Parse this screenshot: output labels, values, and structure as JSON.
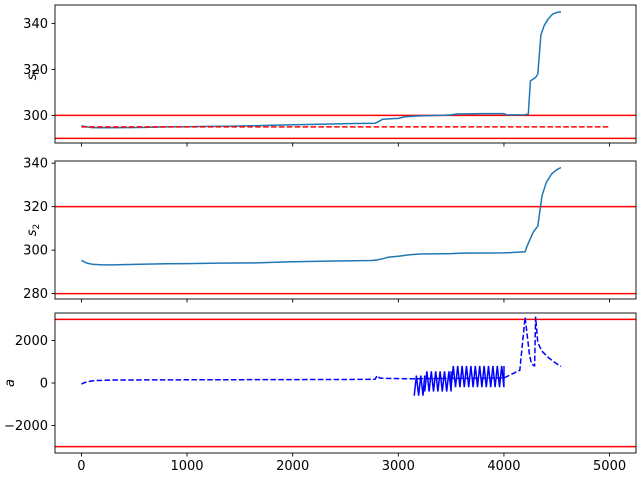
{
  "chart_data": [
    {
      "type": "line",
      "ylabel": "s",
      "ylabel_sub": "1",
      "xlim": [
        -250,
        5250
      ],
      "ylim": [
        288,
        348
      ],
      "yticks": [
        300,
        320,
        340
      ],
      "grid": false,
      "hlines": [
        {
          "y": 300,
          "color": "#ff0000",
          "style": "solid"
        },
        {
          "y": 290,
          "color": "#ff0000",
          "style": "solid"
        }
      ],
      "series": [
        {
          "color": "#1f77b4",
          "style": "solid",
          "x": [
            0,
            50,
            100,
            200,
            400,
            600,
            800,
            1000,
            1200,
            1400,
            1600,
            1800,
            2000,
            2200,
            2400,
            2600,
            2780,
            2800,
            2850,
            2950,
            3000,
            3050,
            3100,
            3200,
            3300,
            3400,
            3500,
            3550,
            3700,
            3800,
            3900,
            4000,
            4020,
            4200,
            4230,
            4250,
            4300,
            4320,
            4350,
            4380,
            4420,
            4460,
            4500,
            4540
          ],
          "y": [
            295.5,
            295.0,
            294.7,
            294.6,
            294.7,
            294.8,
            295.0,
            295.1,
            295.2,
            295.3,
            295.5,
            295.7,
            295.9,
            296.1,
            296.3,
            296.5,
            296.6,
            297.0,
            298.3,
            298.6,
            298.7,
            299.3,
            299.5,
            299.8,
            299.9,
            300.0,
            300.2,
            300.6,
            300.7,
            300.8,
            300.8,
            300.8,
            300.2,
            300.3,
            300.6,
            315.0,
            316.5,
            318.0,
            335.0,
            339.0,
            342.0,
            344.0,
            344.8,
            345.0
          ]
        },
        {
          "color": "#ff0000",
          "style": "dashed",
          "x": [
            0,
            5000
          ],
          "y": [
            295.0,
            295.0
          ]
        }
      ]
    },
    {
      "type": "line",
      "ylabel": "s",
      "ylabel_sub": "2",
      "xlim": [
        -250,
        5250
      ],
      "ylim": [
        277.5,
        341
      ],
      "yticks": [
        280,
        300,
        320,
        340
      ],
      "grid": false,
      "hlines": [
        {
          "y": 320,
          "color": "#ff0000",
          "style": "solid"
        },
        {
          "y": 280,
          "color": "#ff0000",
          "style": "solid"
        }
      ],
      "series": [
        {
          "color": "#1f77b4",
          "style": "solid",
          "x": [
            0,
            50,
            100,
            200,
            300,
            500,
            800,
            1000,
            1300,
            1650,
            2000,
            2400,
            2750,
            2800,
            2850,
            2900,
            3000,
            3100,
            3200,
            3500,
            3600,
            4000,
            4200,
            4220,
            4280,
            4320,
            4360,
            4400,
            4450,
            4500,
            4540
          ],
          "y": [
            295.3,
            294.0,
            293.5,
            293.2,
            293.2,
            293.4,
            293.7,
            293.8,
            294.0,
            294.1,
            294.6,
            295.0,
            295.2,
            295.5,
            296.0,
            296.7,
            297.2,
            297.8,
            298.2,
            298.4,
            298.6,
            298.7,
            299.2,
            302.0,
            308.5,
            311.0,
            325.0,
            331.0,
            335.0,
            337.0,
            338.0
          ]
        }
      ]
    },
    {
      "type": "line",
      "ylabel": "a",
      "xlim": [
        -250,
        5250
      ],
      "ylim": [
        -3300,
        3300
      ],
      "yticks": [
        -2000,
        0,
        2000
      ],
      "xticks": [
        0,
        1000,
        2000,
        3000,
        4000,
        5000
      ],
      "grid": false,
      "hlines": [
        {
          "y": 3000,
          "color": "#ff0000",
          "style": "solid"
        },
        {
          "y": -3000,
          "color": "#ff0000",
          "style": "solid"
        }
      ],
      "series": [
        {
          "color": "#0000ff",
          "style": "dashed",
          "x": [
            0,
            30,
            60,
            100,
            150,
            300,
            1000,
            2000,
            2700,
            2780,
            2800,
            2820,
            2850,
            3100,
            4000,
            4150,
            4200,
            4240,
            4260,
            4290,
            4300,
            4320,
            4360,
            4420,
            4500,
            4540
          ],
          "y": [
            -50,
            20,
            60,
            100,
            120,
            140,
            150,
            160,
            170,
            180,
            350,
            240,
            220,
            200,
            240,
            600,
            3100,
            1400,
            900,
            800,
            3100,
            1900,
            1500,
            1200,
            900,
            780
          ]
        }
      ],
      "oscillation_bands": [
        {
          "x_start": 3150,
          "x_end": 3250,
          "y_min": -600,
          "y_max": 350
        },
        {
          "x_start": 3250,
          "x_end": 3500,
          "y_min": -400,
          "y_max": 550
        },
        {
          "x_start": 3500,
          "x_end": 4000,
          "y_min": -200,
          "y_max": 800
        }
      ]
    }
  ]
}
